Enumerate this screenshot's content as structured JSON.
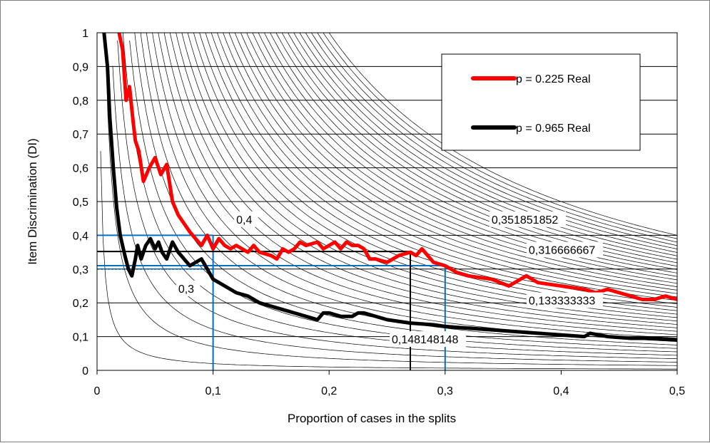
{
  "chart_data": {
    "type": "line",
    "xlabel": "Proportion of cases in the splits",
    "ylabel": "Item Discrimination (DI)",
    "xlim": [
      0,
      0.5
    ],
    "ylim": [
      0,
      1
    ],
    "x_ticks": [
      "0",
      "0,1",
      "0,2",
      "0,3",
      "0,4",
      "0,5"
    ],
    "y_ticks": [
      "0",
      "0,1",
      "0,2",
      "0,3",
      "0,4",
      "0,5",
      "0,6",
      "0,7",
      "0,8",
      "0,9",
      "1"
    ],
    "grid": "horizontal",
    "legend_position": "top-right",
    "series": [
      {
        "name": "p = 0.225 Real",
        "color": "#ff0000",
        "x": [
          0.019,
          0.022,
          0.025,
          0.028,
          0.031,
          0.033,
          0.036,
          0.04,
          0.045,
          0.05,
          0.055,
          0.06,
          0.065,
          0.07,
          0.08,
          0.09,
          0.095,
          0.1,
          0.105,
          0.11,
          0.115,
          0.12,
          0.13,
          0.135,
          0.14,
          0.15,
          0.155,
          0.16,
          0.165,
          0.17,
          0.175,
          0.18,
          0.19,
          0.195,
          0.2,
          0.205,
          0.21,
          0.215,
          0.22,
          0.225,
          0.23,
          0.235,
          0.24,
          0.25,
          0.26,
          0.27,
          0.275,
          0.28,
          0.29,
          0.3,
          0.31,
          0.32,
          0.34,
          0.355,
          0.37,
          0.38,
          0.4,
          0.42,
          0.43,
          0.44,
          0.45,
          0.46,
          0.47,
          0.48,
          0.49,
          0.5
        ],
        "y": [
          1.0,
          0.95,
          0.8,
          0.84,
          0.74,
          0.68,
          0.65,
          0.56,
          0.6,
          0.63,
          0.58,
          0.61,
          0.5,
          0.46,
          0.41,
          0.37,
          0.4,
          0.36,
          0.39,
          0.37,
          0.36,
          0.37,
          0.35,
          0.37,
          0.35,
          0.34,
          0.33,
          0.36,
          0.35,
          0.36,
          0.38,
          0.37,
          0.38,
          0.36,
          0.37,
          0.38,
          0.36,
          0.38,
          0.37,
          0.37,
          0.36,
          0.33,
          0.33,
          0.32,
          0.34,
          0.35,
          0.34,
          0.36,
          0.32,
          0.31,
          0.29,
          0.28,
          0.27,
          0.25,
          0.28,
          0.26,
          0.25,
          0.24,
          0.23,
          0.24,
          0.23,
          0.22,
          0.21,
          0.21,
          0.22,
          0.21
        ]
      },
      {
        "name": "p = 0.965 Real",
        "color": "#000000",
        "x": [
          0.006,
          0.009,
          0.011,
          0.014,
          0.017,
          0.02,
          0.024,
          0.027,
          0.03,
          0.033,
          0.035,
          0.038,
          0.042,
          0.046,
          0.05,
          0.053,
          0.056,
          0.06,
          0.065,
          0.07,
          0.08,
          0.09,
          0.095,
          0.1,
          0.11,
          0.12,
          0.13,
          0.14,
          0.15,
          0.16,
          0.17,
          0.18,
          0.19,
          0.195,
          0.2,
          0.21,
          0.22,
          0.225,
          0.23,
          0.25,
          0.27,
          0.29,
          0.3,
          0.32,
          0.34,
          0.36,
          0.38,
          0.4,
          0.42,
          0.425,
          0.44,
          0.46,
          0.48,
          0.5
        ],
        "y": [
          1.0,
          0.9,
          0.75,
          0.6,
          0.48,
          0.4,
          0.34,
          0.3,
          0.28,
          0.33,
          0.37,
          0.33,
          0.37,
          0.39,
          0.36,
          0.38,
          0.35,
          0.33,
          0.38,
          0.35,
          0.31,
          0.33,
          0.3,
          0.27,
          0.25,
          0.23,
          0.22,
          0.2,
          0.19,
          0.18,
          0.17,
          0.16,
          0.15,
          0.17,
          0.17,
          0.16,
          0.16,
          0.17,
          0.17,
          0.15,
          0.14,
          0.135,
          0.13,
          0.125,
          0.12,
          0.115,
          0.11,
          0.105,
          0.1,
          0.11,
          0.1,
          0.095,
          0.095,
          0.09
        ]
      }
    ],
    "background_curves": {
      "family": "isolines",
      "min": 0.002,
      "max": 0.2,
      "count": 40
    },
    "reference_lines": [
      {
        "color": "#0070c0",
        "x": 0.1,
        "y": 0.4
      },
      {
        "color": "#0070c0",
        "x": 0.3,
        "y": 0.31
      },
      {
        "color": "#000000",
        "x": 0.27,
        "y": 0.352
      }
    ],
    "reference_hlines": [
      {
        "color": "#0070c0",
        "y": 0.3,
        "dashed": true
      }
    ],
    "annotations": [
      {
        "text": "0,4",
        "x": 0.12,
        "y": 0.435
      },
      {
        "text": "0,3",
        "x": 0.07,
        "y": 0.23
      },
      {
        "text": "0,351851852",
        "x": 0.34,
        "y": 0.435
      },
      {
        "text": "0,316666667",
        "x": 0.372,
        "y": 0.345
      },
      {
        "text": "0,133333333",
        "x": 0.372,
        "y": 0.195
      },
      {
        "text": "0,148148148",
        "x": 0.254,
        "y": 0.08
      }
    ]
  }
}
